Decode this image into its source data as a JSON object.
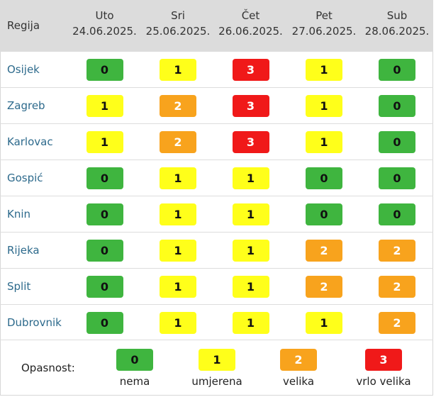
{
  "header": {
    "region_label": "Regija",
    "days": [
      {
        "name": "Uto",
        "date": "24.06.2025."
      },
      {
        "name": "Sri",
        "date": "25.06.2025."
      },
      {
        "name": "Čet",
        "date": "26.06.2025."
      },
      {
        "name": "Pet",
        "date": "27.06.2025."
      },
      {
        "name": "Sub",
        "date": "28.06.2025."
      }
    ]
  },
  "rows": [
    {
      "region": "Osijek",
      "levels": [
        "0",
        "1",
        "3",
        "1",
        "0"
      ]
    },
    {
      "region": "Zagreb",
      "levels": [
        "1",
        "2",
        "3",
        "1",
        "0"
      ]
    },
    {
      "region": "Karlovac",
      "levels": [
        "1",
        "2",
        "3",
        "1",
        "0"
      ]
    },
    {
      "region": "Gospić",
      "levels": [
        "0",
        "1",
        "1",
        "0",
        "0"
      ]
    },
    {
      "region": "Knin",
      "levels": [
        "0",
        "1",
        "1",
        "0",
        "0"
      ]
    },
    {
      "region": "Rijeka",
      "levels": [
        "0",
        "1",
        "1",
        "2",
        "2"
      ]
    },
    {
      "region": "Split",
      "levels": [
        "0",
        "1",
        "1",
        "2",
        "2"
      ]
    },
    {
      "region": "Dubrovnik",
      "levels": [
        "0",
        "1",
        "1",
        "1",
        "2"
      ]
    }
  ],
  "legend": {
    "label": "Opasnost:",
    "items": [
      {
        "value": "0",
        "caption": "nema"
      },
      {
        "value": "1",
        "caption": "umjerena"
      },
      {
        "value": "2",
        "caption": "velika"
      },
      {
        "value": "3",
        "caption": "vrlo velika"
      }
    ]
  },
  "colors": {
    "level_0": "#3fb53f",
    "level_1": "#ffff1a",
    "level_2": "#f8a31d",
    "level_3": "#f01919",
    "header_bg": "#dcdcdc",
    "region_link": "#2d6a8c"
  }
}
